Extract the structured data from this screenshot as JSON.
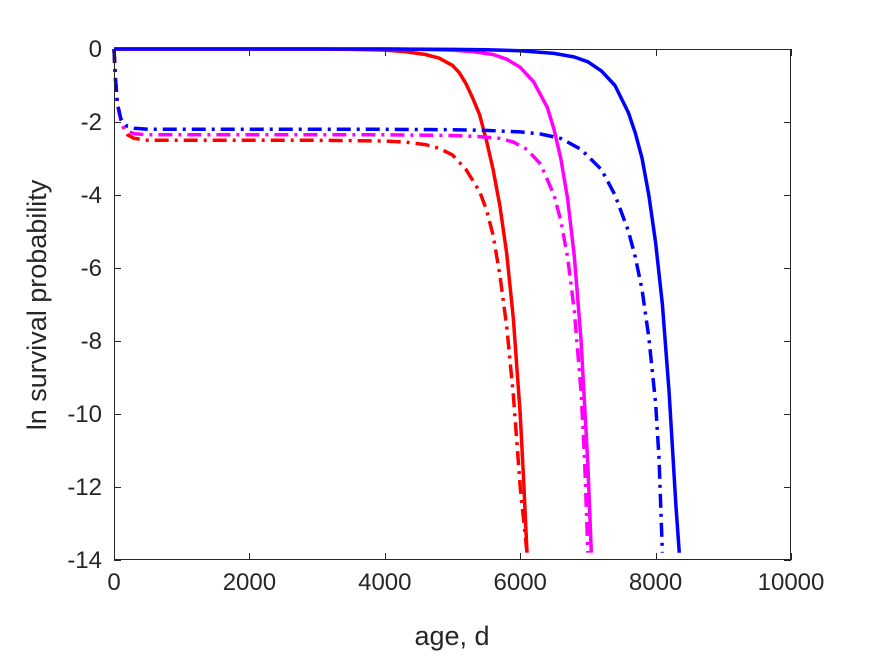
{
  "chart_data": {
    "type": "line",
    "xlabel": "age, d",
    "ylabel": "ln survival probability",
    "xlim": [
      0,
      10000
    ],
    "ylim": [
      -14,
      0
    ],
    "xticks": [
      0,
      2000,
      4000,
      6000,
      8000,
      10000
    ],
    "yticks": [
      0,
      -2,
      -4,
      -6,
      -8,
      -10,
      -12,
      -14
    ],
    "grid": false,
    "series": [
      {
        "color": "#ff0000",
        "style": "solid",
        "x": [
          0,
          1000,
          2000,
          3000,
          3500,
          4000,
          4300,
          4600,
          4800,
          5000,
          5100,
          5200,
          5300,
          5400,
          5500,
          5600,
          5700,
          5800,
          5900,
          6000,
          6050,
          6100
        ],
        "y": [
          0,
          0,
          0,
          0,
          -0.01,
          -0.03,
          -0.07,
          -0.15,
          -0.25,
          -0.45,
          -0.65,
          -0.95,
          -1.35,
          -1.8,
          -2.5,
          -3.3,
          -4.3,
          -5.6,
          -7.4,
          -10.0,
          -11.8,
          -13.8
        ]
      },
      {
        "color": "#ff0000",
        "style": "dashdot",
        "x": [
          0,
          20,
          50,
          100,
          150,
          200,
          300,
          500,
          1000,
          2000,
          3000,
          4000,
          4300,
          4600,
          4800,
          5000,
          5200,
          5400,
          5500,
          5600,
          5700,
          5800,
          5900,
          6000,
          6100
        ],
        "y": [
          0,
          -0.8,
          -1.5,
          -1.95,
          -2.2,
          -2.35,
          -2.45,
          -2.5,
          -2.5,
          -2.5,
          -2.5,
          -2.52,
          -2.55,
          -2.62,
          -2.72,
          -2.9,
          -3.3,
          -3.9,
          -4.4,
          -5.1,
          -6.2,
          -7.6,
          -9.5,
          -12.0,
          -13.8
        ]
      },
      {
        "color": "#ff00ff",
        "style": "solid",
        "x": [
          0,
          2000,
          3000,
          4000,
          4500,
          5000,
          5300,
          5600,
          5800,
          6000,
          6200,
          6400,
          6500,
          6600,
          6700,
          6800,
          6900,
          7000,
          7050
        ],
        "y": [
          0,
          0,
          0,
          0,
          -0.01,
          -0.03,
          -0.07,
          -0.15,
          -0.28,
          -0.5,
          -0.9,
          -1.6,
          -2.2,
          -3.0,
          -4.1,
          -5.7,
          -8.0,
          -11.4,
          -13.8
        ]
      },
      {
        "color": "#ff00ff",
        "style": "dashdot",
        "x": [
          0,
          20,
          50,
          100,
          150,
          200,
          300,
          500,
          1000,
          2000,
          3000,
          4000,
          5000,
          5400,
          5700,
          5900,
          6100,
          6300,
          6500,
          6600,
          6700,
          6800,
          6900,
          6950,
          7000
        ],
        "y": [
          0,
          -0.8,
          -1.5,
          -1.95,
          -2.15,
          -2.25,
          -2.32,
          -2.35,
          -2.35,
          -2.35,
          -2.35,
          -2.35,
          -2.37,
          -2.4,
          -2.45,
          -2.55,
          -2.75,
          -3.15,
          -4.0,
          -4.7,
          -5.7,
          -7.2,
          -9.4,
          -11.2,
          -13.8
        ]
      },
      {
        "color": "#0000ff",
        "style": "solid",
        "x": [
          0,
          2000,
          4000,
          5000,
          5500,
          6000,
          6500,
          6800,
          7000,
          7200,
          7400,
          7600,
          7700,
          7800,
          7900,
          8000,
          8100,
          8200,
          8300,
          8350
        ],
        "y": [
          0,
          0,
          0,
          -0.01,
          -0.02,
          -0.05,
          -0.12,
          -0.22,
          -0.35,
          -0.6,
          -1.0,
          -1.75,
          -2.3,
          -3.0,
          -4.0,
          -5.3,
          -7.0,
          -9.4,
          -12.5,
          -13.8
        ]
      },
      {
        "color": "#0000ff",
        "style": "dashdot",
        "x": [
          0,
          20,
          50,
          100,
          150,
          200,
          300,
          500,
          1000,
          2000,
          3000,
          4000,
          5000,
          5500,
          6000,
          6300,
          6600,
          6900,
          7200,
          7400,
          7600,
          7700,
          7800,
          7900,
          8000,
          8050,
          8100
        ],
        "y": [
          0,
          -0.8,
          -1.5,
          -1.9,
          -2.05,
          -2.12,
          -2.17,
          -2.2,
          -2.2,
          -2.2,
          -2.2,
          -2.2,
          -2.21,
          -2.23,
          -2.27,
          -2.33,
          -2.45,
          -2.75,
          -3.3,
          -4.0,
          -5.0,
          -5.7,
          -6.6,
          -7.9,
          -9.7,
          -11.2,
          -13.8
        ]
      }
    ]
  }
}
